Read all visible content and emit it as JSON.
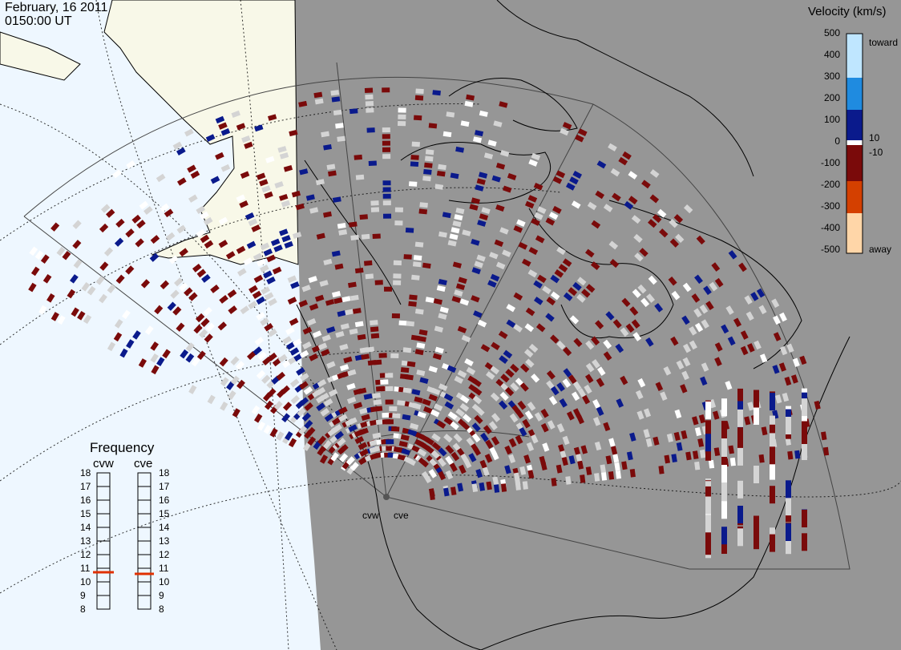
{
  "header": {
    "date": "February, 16 2011",
    "time": "0150:00 UT"
  },
  "legend": {
    "title": "Velocity (km/s)",
    "ticks": [
      "500",
      "400",
      "300",
      "200",
      "100",
      "0",
      "-100",
      "-200",
      "-300",
      "-400",
      "-500"
    ],
    "inner_ticks": [
      "10",
      "-10"
    ],
    "toward_label": "toward",
    "away_label": "away",
    "colors": {
      "toward_high": "#bfe6ff",
      "toward_mid": "#1f8be0",
      "toward_low": "#0a1a8c",
      "zero_band": "#ffffff",
      "away_low": "#7a0a0a",
      "away_mid": "#d44000",
      "away_high": "#ffd6a8",
      "ground_scatter": "#d4d4d4"
    }
  },
  "frequency": {
    "title": "Frequency",
    "radars": [
      {
        "name": "cvw",
        "value_mhz": 10.8
      },
      {
        "name": "cve",
        "value_mhz": 10.8
      }
    ],
    "scale": [
      "18",
      "17",
      "16",
      "15",
      "14",
      "13",
      "12",
      "11",
      "10",
      "9",
      "8"
    ]
  },
  "map": {
    "colors": {
      "night": "#969696",
      "day_ocean": "#eef7ff",
      "day_land": "#f8f8e8"
    },
    "radar_sites": [
      "cvw",
      "cve"
    ]
  }
}
